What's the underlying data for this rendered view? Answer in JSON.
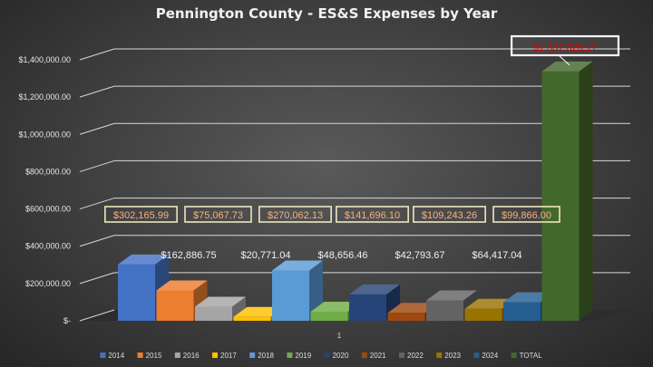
{
  "chart_data": {
    "type": "bar",
    "title": "Pennington County - ES&S Expenses by Year",
    "xlabel": "",
    "ylabel": "",
    "categories": [
      "1"
    ],
    "ylim": [
      0,
      1400000
    ],
    "yticks": [
      {
        "value": 0,
        "label": "$-"
      },
      {
        "value": 200000,
        "label": "$200,000.00"
      },
      {
        "value": 400000,
        "label": "$400,000.00"
      },
      {
        "value": 600000,
        "label": "$600,000.00"
      },
      {
        "value": 800000,
        "label": "$800,000.00"
      },
      {
        "value": 1000000,
        "label": "$1,000,000.00"
      },
      {
        "value": 1200000,
        "label": "$1,200,000.00"
      },
      {
        "value": 1400000,
        "label": "$1,400,000.00"
      }
    ],
    "grid": true,
    "legend_position": "bottom",
    "series": [
      {
        "name": "2014",
        "value": 302165.99,
        "label": "$302,165.99",
        "color": "#4472c4",
        "label_style": "boxed"
      },
      {
        "name": "2015",
        "value": 162886.75,
        "label": "$162,886.75",
        "color": "#ed7d31",
        "label_style": "plain"
      },
      {
        "name": "2016",
        "value": 75067.73,
        "label": "$75,067.73",
        "color": "#a5a5a5",
        "label_style": "boxed"
      },
      {
        "name": "2017",
        "value": 20771.04,
        "label": "$20,771.04",
        "color": "#ffc000",
        "label_style": "plain"
      },
      {
        "name": "2018",
        "value": 270062.13,
        "label": "$270,062.13",
        "color": "#5b9bd5",
        "label_style": "boxed"
      },
      {
        "name": "2019",
        "value": 48656.46,
        "label": "$48,656.46",
        "color": "#70ad47",
        "label_style": "plain"
      },
      {
        "name": "2020",
        "value": 141696.1,
        "label": "$141,696.10",
        "color": "#264478",
        "label_style": "boxed"
      },
      {
        "name": "2021",
        "value": 42793.67,
        "label": "$42,793.67",
        "color": "#9e480e",
        "label_style": "plain"
      },
      {
        "name": "2022",
        "value": 109243.26,
        "label": "$109,243.26",
        "color": "#636363",
        "label_style": "boxed"
      },
      {
        "name": "2023",
        "value": 64417.04,
        "label": "$64,417.04",
        "color": "#997300",
        "label_style": "plain"
      },
      {
        "name": "2024",
        "value": 99866.0,
        "label": "$99,866.00",
        "color": "#255e91",
        "label_style": "boxed"
      },
      {
        "name": "TOTAL",
        "value": 1337626.17,
        "label": "$1,337,626.17",
        "color": "#43682b",
        "label_style": "total"
      }
    ]
  }
}
